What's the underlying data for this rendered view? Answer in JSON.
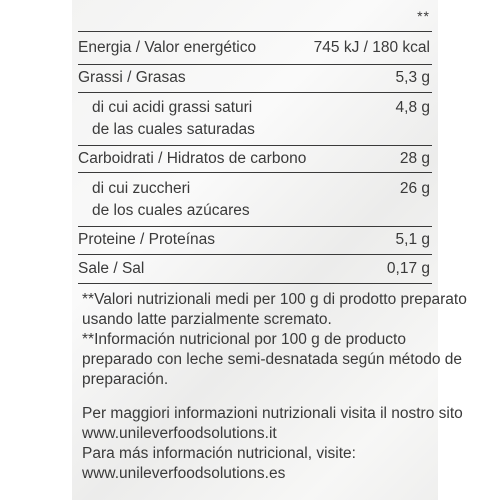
{
  "marker": "**",
  "rows": {
    "energy": {
      "label": "Energia / Valor energético",
      "value": "745 kJ / 180 kcal"
    },
    "fat": {
      "label": "Grassi / Grasas",
      "value": "5,3 g"
    },
    "saturated": {
      "label_it": "di cui acidi grassi saturi",
      "label_es": "de las cuales saturadas",
      "value": "4,8 g"
    },
    "carbs": {
      "label": "Carboidrati / Hidratos de carbono",
      "value": "28 g"
    },
    "sugars": {
      "label_it": "di cui zuccheri",
      "label_es": "de los cuales azúcares",
      "value": "26 g"
    },
    "protein": {
      "label": "Proteine / Proteínas",
      "value": "5,1 g"
    },
    "salt": {
      "label": "Sale / Sal",
      "value": "0,17 g"
    }
  },
  "notes": {
    "it_line1": "**Valori nutrizionali medi per 100 g di prodotto preparato",
    "it_line2": "usando latte parzialmente scremato.",
    "es_line1": "**Información nutricional por 100 g de producto",
    "es_line2": "preparado con leche semi-desnatada según método de",
    "es_line3": "preparación."
  },
  "info": {
    "it_text": "Per maggiori informazioni nutrizionali visita il nostro sito",
    "it_url": "www.unileverfoodsolutions.it",
    "es_text": "Para más información nutricional, visite:",
    "es_url": "www.unileverfoodsolutions.es"
  }
}
